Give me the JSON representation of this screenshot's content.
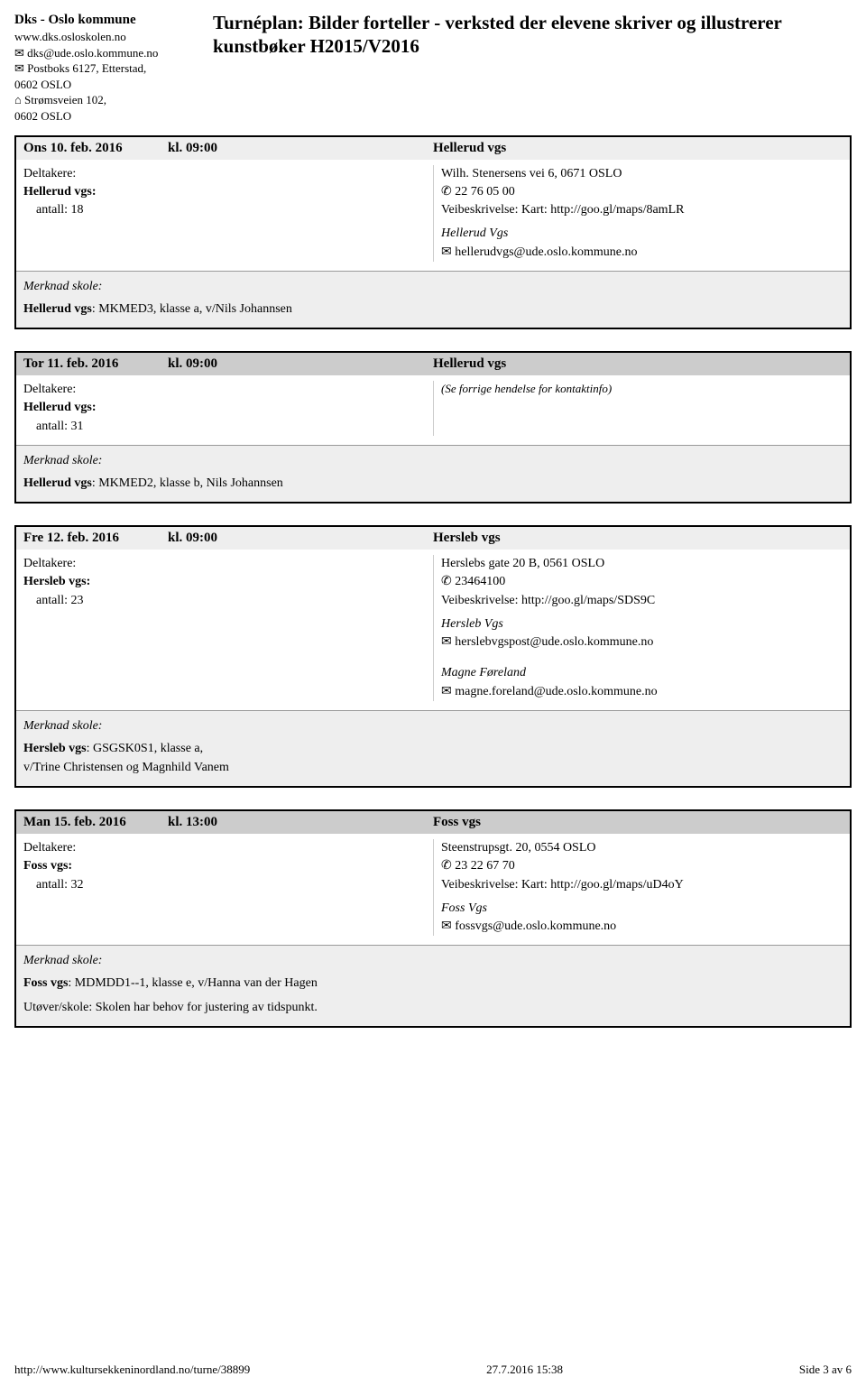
{
  "org": {
    "name": "Dks - Oslo kommune",
    "web": "www.dks.osloskolen.no",
    "email": "✉ dks@ude.oslo.kommune.no",
    "postbox": "✉ Postboks 6127, Etterstad,",
    "postbox2": "0602 OSLO",
    "street": "⌂ Strømsveien 102,",
    "street2": "0602 OSLO"
  },
  "title": "Turnéplan: Bilder forteller - verksted der elevene skriver og illustrerer kunstbøker H2015/V2016",
  "events": [
    {
      "dark": false,
      "date": "Ons 10. feb. 2016",
      "time": "kl. 09:00",
      "venue": "Hellerud vgs",
      "part_label": "Deltakere:",
      "part_school": "Hellerud vgs:",
      "part_count": "antall: 18",
      "addr": "Wilh. Stenersens vei 6, 0671 OSLO",
      "phone": "✆ 22 76 05 00",
      "directions": "Veibeskrivelse: Kart: http://goo.gl/maps/8amLR",
      "contact_org": "Hellerud Vgs",
      "contact_email": "✉ hellerudvgs@ude.oslo.kommune.no",
      "merk_label": "Merknad skole:",
      "merk_school": "Hellerud vgs",
      "merk_rest": ": MKMED3, klasse a, v/Nils Johannsen"
    },
    {
      "dark": true,
      "date": "Tor 11. feb. 2016",
      "time": "kl. 09:00",
      "venue": "Hellerud vgs",
      "part_label": "Deltakere:",
      "part_school": "Hellerud vgs:",
      "part_count": "antall: 31",
      "see_prev": "(Se forrige hendelse for kontaktinfo)",
      "merk_label": "Merknad skole:",
      "merk_school": "Hellerud vgs",
      "merk_rest": ": MKMED2, klasse b, Nils Johannsen"
    },
    {
      "dark": false,
      "date": "Fre 12. feb. 2016",
      "time": "kl. 09:00",
      "venue": "Hersleb vgs",
      "part_label": "Deltakere:",
      "part_school": "Hersleb vgs:",
      "part_count": "antall: 23",
      "addr": "Herslebs gate 20 B, 0561 OSLO",
      "phone": "✆ 23464100",
      "directions": "Veibeskrivelse: http://goo.gl/maps/SDS9C",
      "contact_org": "Hersleb Vgs",
      "contact_email": "✉ herslebvgspost@ude.oslo.kommune.no",
      "contact2_name": "Magne Føreland",
      "contact2_email": "✉ magne.foreland@ude.oslo.kommune.no",
      "merk_label": "Merknad skole:",
      "merk_school": "Hersleb vgs",
      "merk_rest": ": GSGSK0S1, klasse a,",
      "merk_line2": "v/Trine Christensen og Magnhild Vanem"
    },
    {
      "dark": true,
      "date": "Man 15. feb. 2016",
      "time": "kl. 13:00",
      "venue": "Foss vgs",
      "part_label": "Deltakere:",
      "part_school": "Foss vgs:",
      "part_count": "antall: 32",
      "addr": "Steenstrupsgt. 20, 0554 OSLO",
      "phone": "✆ 23 22 67 70",
      "directions": "Veibeskrivelse: Kart: http://goo.gl/maps/uD4oY",
      "contact_org": "Foss Vgs",
      "contact_email": "✉ fossvgs@ude.oslo.kommune.no",
      "merk_label": "Merknad skole:",
      "merk_school": "Foss vgs",
      "merk_rest": ": MDMDD1--1, klasse e, v/Hanna van der Hagen",
      "merk_extra": "Utøver/skole: Skolen har behov for justering av tidspunkt."
    }
  ],
  "footer": {
    "url": "http://www.kultursekkeninordland.no/turne/38899",
    "timestamp": "27.7.2016 15:38",
    "page": "Side 3 av 6"
  }
}
